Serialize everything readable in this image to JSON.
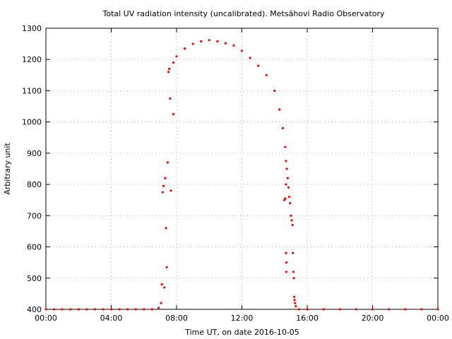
{
  "chart_data": {
    "type": "scatter",
    "title": "Total UV radiation intensity (uncalibrated). Metsähovi Radio Observatory",
    "xlabel": "Time UT, on date 2016-10-05",
    "ylabel": "Arbitrary unit",
    "xlim_hours": [
      0,
      24
    ],
    "ylim": [
      400,
      1300
    ],
    "x_ticks": [
      {
        "hour": 0,
        "label": "00:00"
      },
      {
        "hour": 4,
        "label": "04:00"
      },
      {
        "hour": 8,
        "label": "08:00"
      },
      {
        "hour": 12,
        "label": "12:00"
      },
      {
        "hour": 16,
        "label": "16:00"
      },
      {
        "hour": 20,
        "label": "20:00"
      },
      {
        "hour": 24,
        "label": "00:00"
      }
    ],
    "y_ticks": [
      400,
      500,
      600,
      700,
      800,
      900,
      1000,
      1100,
      1200,
      1300
    ],
    "grid": true,
    "legend": "none",
    "marker_color": "#ff0000",
    "series": [
      {
        "x_hours": [
          0.0,
          0.5,
          1.0,
          1.5,
          2.0,
          2.5,
          3.0,
          3.5,
          4.0,
          4.5,
          5.0,
          5.5,
          6.0,
          6.5,
          6.9,
          7.05,
          7.1,
          7.15,
          7.2,
          7.25,
          7.3,
          7.35,
          7.4,
          7.45,
          7.5,
          7.55,
          7.6,
          7.65,
          7.8,
          7.8,
          8.0,
          8.5,
          9.0,
          9.5,
          10.0,
          10.5,
          11.0,
          11.5,
          12.0,
          12.5,
          13.0,
          13.5,
          14.0,
          14.3,
          14.5,
          14.65,
          14.7,
          14.75,
          14.8,
          14.85,
          14.9,
          14.95,
          15.0,
          15.05,
          15.1,
          14.6,
          14.65,
          14.7,
          14.7,
          14.72,
          14.72,
          15.12,
          15.15,
          15.18,
          15.2,
          15.22,
          15.25,
          15.3,
          15.5,
          16.0,
          17.0,
          18.0,
          19.0,
          20.0,
          21.0,
          22.0,
          23.0,
          24.0
        ],
        "y": [
          400,
          400,
          400,
          400,
          400,
          400,
          400,
          400,
          400,
          400,
          400,
          400,
          400,
          400,
          405,
          420,
          480,
          775,
          795,
          470,
          820,
          660,
          535,
          870,
          1160,
          1170,
          1075,
          780,
          1025,
          1190,
          1210,
          1235,
          1250,
          1258,
          1262,
          1258,
          1252,
          1245,
          1228,
          1205,
          1180,
          1150,
          1100,
          1040,
          980,
          920,
          875,
          850,
          820,
          790,
          760,
          740,
          700,
          685,
          670,
          750,
          755,
          800,
          580,
          550,
          520,
          580,
          520,
          500,
          440,
          430,
          420,
          410,
          400,
          400,
          400,
          400,
          400,
          400,
          400,
          400,
          400,
          400
        ]
      }
    ]
  }
}
